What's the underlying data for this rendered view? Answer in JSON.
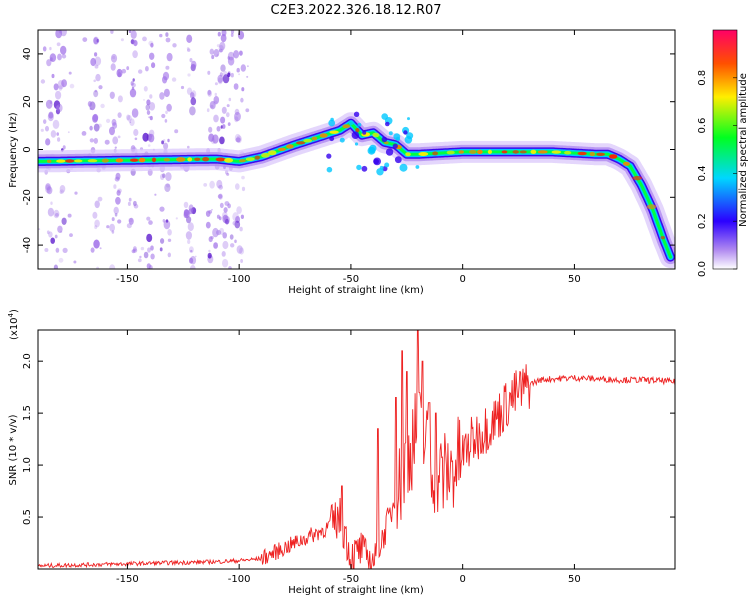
{
  "figure": {
    "title": "C2E3.2022.326.18.12.R07"
  },
  "colors": {
    "snr_line": "#ee2222",
    "blob_purple": "#a070e8",
    "blob_dark": "#4a00c8"
  },
  "chart_data": [
    {
      "type": "heatmap",
      "title": "C2E3.2022.326.18.12.R07",
      "xlabel": "Height of straight line (km)",
      "ylabel": "Frequency (Hz)",
      "xlim": [
        -190,
        95
      ],
      "ylim": [
        -50,
        50
      ],
      "xticks": [
        -150,
        -100,
        -50,
        0,
        50
      ],
      "yticks": [
        -40,
        -20,
        0,
        20,
        40
      ],
      "colorbar": {
        "label": "Normalized spectral amplitude",
        "range": [
          0,
          1
        ],
        "ticks": [
          "0.0",
          "0.2",
          "0.4",
          "0.6",
          "0.8"
        ],
        "colormap": "rainbow (magenta-blue-cyan-green-yellow-red)"
      },
      "ridge": {
        "x": [
          -190,
          -150,
          -110,
          -100,
          -90,
          -75,
          -65,
          -55,
          -50,
          -45,
          -40,
          -35,
          -30,
          -25,
          -20,
          0,
          20,
          40,
          60,
          65,
          70,
          75,
          80,
          85,
          90,
          93
        ],
        "y": [
          -5,
          -4.5,
          -4,
          -5,
          -3,
          2,
          5,
          8,
          11,
          6,
          7,
          3,
          2,
          -2,
          -2,
          -1,
          -1,
          -1,
          -2,
          -2,
          -4,
          -7,
          -15,
          -25,
          -38,
          -45
        ]
      },
      "grid": false
    },
    {
      "type": "line",
      "xlabel": "Height of straight line (km)",
      "ylabel": "SNR (10 * v/v)",
      "y_multiplier": "(x10",
      "y_multiplier_exp": "4",
      "xlim": [
        -190,
        95
      ],
      "ylim": [
        0,
        2.3
      ],
      "xticks": [
        -150,
        -100,
        -50,
        0,
        50
      ],
      "yticks": [
        "0.5",
        "1.0",
        "1.5",
        "2.0"
      ],
      "series": [
        {
          "x": [
            -190,
            -170,
            -150,
            -130,
            -110,
            -100,
            -90,
            -85,
            -80,
            -75,
            -70,
            -65,
            -60,
            -55,
            -52,
            -50,
            -47,
            -45,
            -42,
            -40,
            -38,
            -35,
            -32,
            -30,
            -27,
            -25,
            -22,
            -20,
            -18,
            -16,
            -14,
            -12,
            -10,
            -5,
            0,
            5,
            10,
            15,
            20,
            25,
            30,
            35,
            40,
            50,
            60,
            70,
            80,
            90,
            95
          ],
          "y": [
            0.03,
            0.04,
            0.05,
            0.06,
            0.07,
            0.08,
            0.1,
            0.15,
            0.2,
            0.25,
            0.3,
            0.35,
            0.4,
            0.5,
            0.3,
            0.1,
            0.15,
            0.2,
            0.1,
            0.08,
            0.15,
            0.35,
            0.55,
            0.7,
            0.85,
            1.05,
            1.25,
            1.35,
            1.3,
            1.15,
            1.0,
            0.95,
            0.9,
            0.95,
            1.1,
            1.25,
            1.35,
            1.45,
            1.6,
            1.7,
            1.78,
            1.82,
            1.83,
            1.84,
            1.83,
            1.82,
            1.82,
            1.81,
            1.8
          ],
          "spikes": [
            {
              "x": -54,
              "y": 0.8
            },
            {
              "x": -38,
              "y": 1.35
            },
            {
              "x": -30,
              "y": 1.65
            },
            {
              "x": -27,
              "y": 2.1
            },
            {
              "x": -25,
              "y": 1.9
            },
            {
              "x": -20,
              "y": 2.3
            },
            {
              "x": -18,
              "y": 2.0
            },
            {
              "x": -15,
              "y": 1.6
            },
            {
              "x": -12,
              "y": 1.5
            }
          ]
        }
      ]
    }
  ]
}
